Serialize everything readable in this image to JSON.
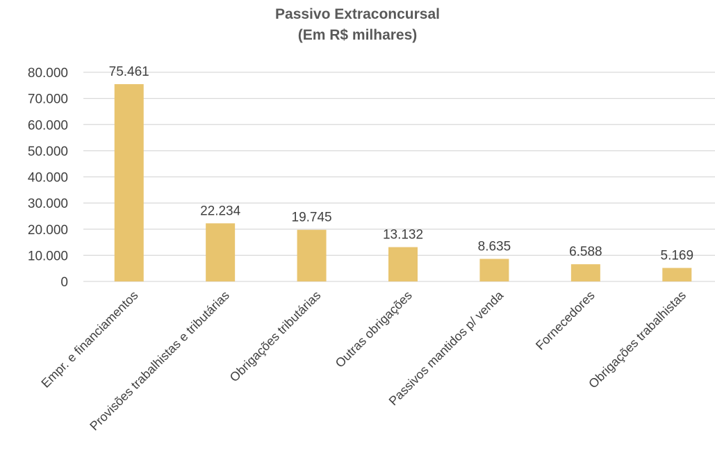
{
  "chart_data": {
    "type": "bar",
    "title": "Passivo Extraconcursal",
    "subtitle": "(Em R$ milhares)",
    "categories": [
      "Empr. e financiamentos",
      "Provisões trabalhistas e tributárias",
      "Obrigações tributárias",
      "Outras obrigações",
      "Passivos mantidos p/ venda",
      "Fornecedores",
      "Obrigações trabalhistas"
    ],
    "values": [
      75461,
      22234,
      19745,
      13132,
      8635,
      6588,
      5169
    ],
    "data_labels": [
      "75.461",
      "22.234",
      "19.745",
      "13.132",
      "8.635",
      "6.588",
      "5.169"
    ],
    "yticks": [
      "0",
      "10.000",
      "20.000",
      "30.000",
      "40.000",
      "50.000",
      "60.000",
      "70.000",
      "80.000"
    ],
    "ylim": [
      0,
      80000
    ],
    "grid": true,
    "legend": "none",
    "bar_color": "#E8C46E",
    "grid_color": "#D9D9D9"
  }
}
